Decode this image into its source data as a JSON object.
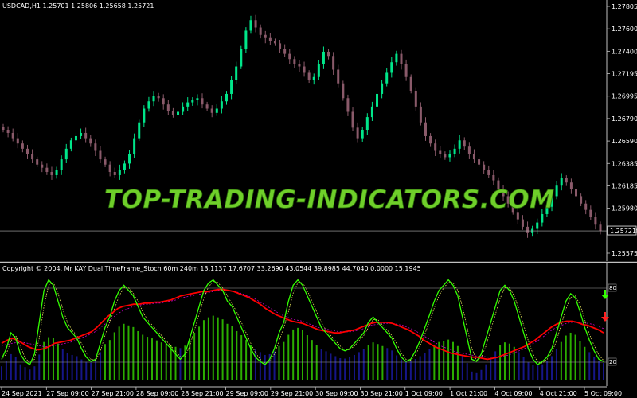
{
  "main_chart": {
    "header": "USDCAD,H1  1.25701 1.25806 1.25658 1.25721",
    "current_price": "1.25721",
    "price_ticks": [
      "1.27805",
      "1.27600",
      "1.27400",
      "1.27195",
      "1.26995",
      "1.26790",
      "1.26590",
      "1.26385",
      "1.26185",
      "1.25980",
      "1.25780",
      "1.25575"
    ],
    "watermark": "TOP-TRADING-INDICATORS.COM"
  },
  "indicator": {
    "header": "Copyright © 2004, Mr KAY Dual TimeFrame_Stoch 60m 240m  13.1137 17.6707 33.2690 43.0544 39.8985 44.7040 0.0000 15.1945",
    "level_high": "80",
    "level_low": "20",
    "signal_up_icon": "green-down-arrow",
    "signal_down_icon": "red-down-arrow"
  },
  "time_axis": [
    "24 Sep 2021",
    "27 Sep 09:00",
    "27 Sep 21:00",
    "28 Sep 09:00",
    "28 Sep 21:00",
    "29 Sep 09:00",
    "29 Sep 21:00",
    "30 Sep 09:00",
    "30 Sep 21:00",
    "1 Oct 09:00",
    "1 Oct 21:00",
    "4 Oct 09:00",
    "4 Oct 21:00",
    "5 Oct 09:00"
  ],
  "colors": {
    "bull_candle": "#00e68a",
    "bear_candle": "#8a5a6a",
    "fast_stoch": "#33ff00",
    "slow_stoch": "#ff0000",
    "slow_signal": "#cc00cc",
    "hist_high": "#33cc00",
    "hist_low": "#1a1aa0"
  },
  "chart_data": [
    {
      "type": "candlestick",
      "title": "USDCAD,H1",
      "ylim": [
        1.2551,
        1.2785
      ],
      "close": [
        1.2668,
        1.2665,
        1.266,
        1.2655,
        1.265,
        1.2645,
        1.264,
        1.2635,
        1.2632,
        1.2628,
        1.2625,
        1.263,
        1.264,
        1.265,
        1.2658,
        1.2662,
        1.2665,
        1.266,
        1.2655,
        1.2648,
        1.264,
        1.2635,
        1.2628,
        1.2625,
        1.263,
        1.2636,
        1.2645,
        1.266,
        1.2675,
        1.2688,
        1.2695,
        1.27,
        1.2698,
        1.2692,
        1.2686,
        1.2682,
        1.2685,
        1.269,
        1.2694,
        1.2696,
        1.2698,
        1.2692,
        1.2688,
        1.2684,
        1.2688,
        1.2695,
        1.2702,
        1.2715,
        1.2728,
        1.2745,
        1.2762,
        1.2772,
        1.2765,
        1.2758,
        1.2755,
        1.2752,
        1.275,
        1.2745,
        1.274,
        1.2735,
        1.273,
        1.2728,
        1.2722,
        1.2715,
        1.2718,
        1.273,
        1.2742,
        1.2738,
        1.2725,
        1.2712,
        1.2698,
        1.2685,
        1.267,
        1.266,
        1.2668,
        1.268,
        1.269,
        1.2702,
        1.2712,
        1.2722,
        1.2732,
        1.274,
        1.273,
        1.2718,
        1.2705,
        1.269,
        1.2675,
        1.2662,
        1.2655,
        1.2648,
        1.2645,
        1.2642,
        1.2645,
        1.265,
        1.2658,
        1.2652,
        1.2645,
        1.264,
        1.2635,
        1.263,
        1.2625,
        1.262,
        1.2612,
        1.2605,
        1.2598,
        1.259,
        1.2583,
        1.2576,
        1.257,
        1.2574,
        1.258,
        1.2588,
        1.2595,
        1.2605,
        1.2615,
        1.2622,
        1.2618,
        1.2612,
        1.2605,
        1.2598,
        1.2592,
        1.2585,
        1.2578,
        1.25721
      ],
      "series": [
        {
          "name": "",
          "style": "fast stochastic (green)",
          "values": [
            20,
            30,
            45,
            40,
            25,
            18,
            15,
            25,
            55,
            85,
            95,
            90,
            75,
            60,
            50,
            45,
            40,
            30,
            22,
            18,
            20,
            35,
            50,
            60,
            75,
            85,
            90,
            85,
            80,
            70,
            60,
            55,
            50,
            45,
            40,
            35,
            30,
            25,
            20,
            25,
            40,
            55,
            70,
            85,
            92,
            95,
            90,
            85,
            75,
            70,
            60,
            50,
            40,
            30,
            22,
            18,
            15,
            20,
            30,
            45,
            55,
            75,
            90,
            95,
            90,
            80,
            70,
            60,
            50,
            45,
            40,
            35,
            30,
            28,
            30,
            35,
            40,
            45,
            55,
            60,
            55,
            50,
            45,
            40,
            30,
            22,
            18,
            20,
            28,
            38,
            50,
            62,
            75,
            85,
            90,
            95,
            90,
            80,
            60,
            40,
            20,
            18,
            25,
            40,
            55,
            70,
            85,
            90,
            85,
            75,
            60,
            45,
            30,
            20,
            15,
            18,
            22,
            30,
            45,
            60,
            75,
            82,
            78,
            65,
            50,
            38,
            28,
            20,
            18
          ]
        },
        {
          "name": "",
          "style": "slow stochastic (red)",
          "values": [
            35,
            38,
            40,
            38,
            35,
            32,
            30,
            29,
            30,
            32,
            35,
            36,
            37,
            38,
            40,
            42,
            44,
            46,
            50,
            55,
            60,
            64,
            68,
            70,
            71,
            72,
            72,
            73,
            73,
            74,
            74,
            75,
            76,
            78,
            80,
            81,
            82,
            83,
            84,
            84,
            85,
            86,
            86,
            85,
            84,
            82,
            80,
            78,
            75,
            72,
            68,
            65,
            62,
            60,
            58,
            56,
            55,
            54,
            52,
            50,
            48,
            47,
            46,
            45,
            45,
            46,
            47,
            48,
            50,
            52,
            54,
            55,
            55,
            55,
            54,
            52,
            50,
            48,
            45,
            42,
            38,
            35,
            32,
            30,
            28,
            26,
            25,
            24,
            23,
            22,
            22,
            21,
            20,
            21,
            22,
            24,
            26,
            28,
            30,
            32,
            35,
            38,
            42,
            46,
            50,
            53,
            55,
            56,
            56,
            55,
            53,
            52,
            50,
            48,
            45
          ]
        },
        {
          "name": "",
          "style": "slow signal (magenta dashed)",
          "values": [
            33,
            34,
            35,
            36,
            36,
            35,
            34,
            33,
            32,
            32,
            33,
            34,
            35,
            36,
            38,
            40,
            42,
            44,
            47,
            51,
            55,
            59,
            63,
            66,
            68,
            70,
            71,
            72,
            72,
            73,
            73,
            74,
            75,
            76,
            78,
            79,
            80,
            81,
            82,
            83,
            84,
            85,
            85,
            85,
            84,
            83,
            81,
            79,
            77,
            74,
            71,
            68,
            65,
            62,
            60,
            58,
            57,
            56,
            54,
            52,
            50,
            49,
            48,
            47,
            46,
            46,
            46,
            47,
            48,
            50,
            52,
            53,
            54,
            54,
            54,
            53,
            52,
            50,
            48,
            45,
            42,
            39,
            36,
            33,
            31,
            29,
            27,
            26,
            25,
            24,
            23,
            23,
            22,
            22,
            22,
            23,
            24,
            26,
            28,
            30,
            33,
            36,
            39,
            43,
            47,
            50,
            52,
            54,
            55,
            55,
            55,
            54,
            53,
            51,
            49
          ]
        }
      ],
      "ylim_indicator": [
        0,
        100
      ]
    }
  ]
}
